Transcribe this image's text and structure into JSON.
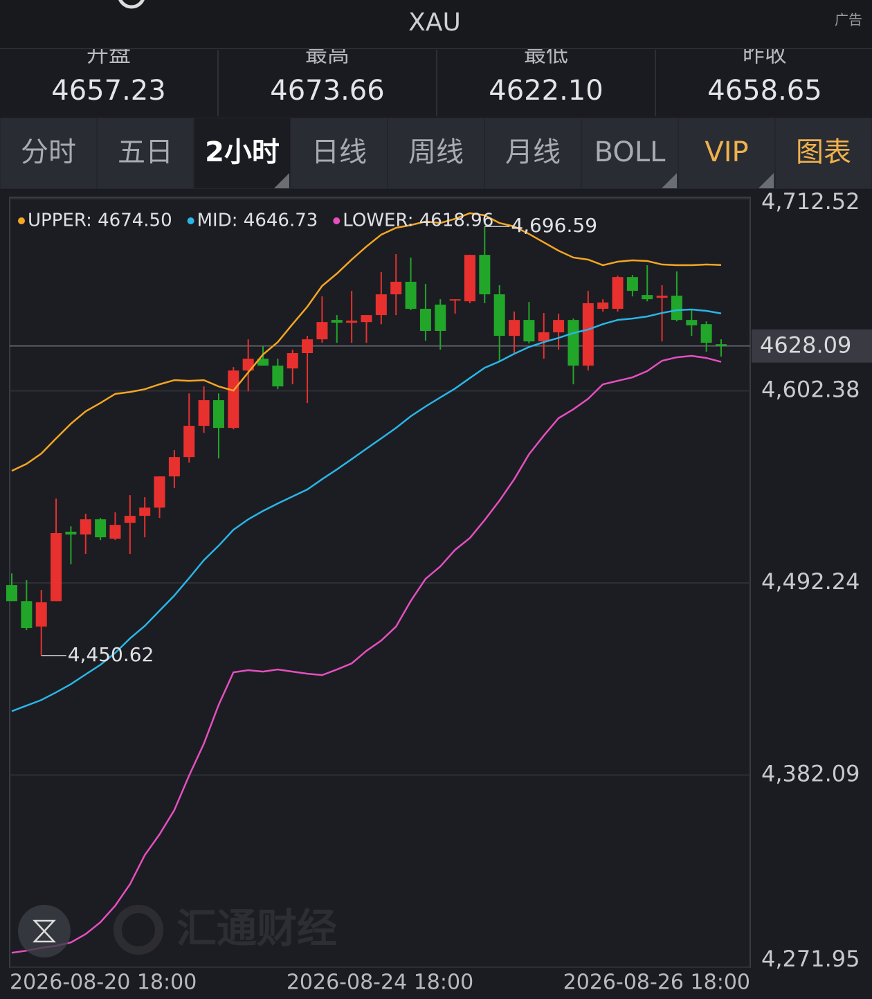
{
  "header": {
    "title": "XAU",
    "ad": "广告"
  },
  "stats": [
    {
      "label": "开盘",
      "value": "4657.23"
    },
    {
      "label": "最高",
      "value": "4673.66"
    },
    {
      "label": "最低",
      "value": "4622.10"
    },
    {
      "label": "昨收",
      "value": "4658.65"
    }
  ],
  "tabs": [
    "分时",
    "五日",
    "2小时",
    "日线",
    "周线",
    "月线",
    "BOLL",
    "VIP",
    "图表"
  ],
  "active_tab": 2,
  "watermark": "汇通财经",
  "chart_data": {
    "type": "candlestick",
    "up_color": "#e8312f",
    "down_color": "#22a62a",
    "open": [
      4491.0,
      4481.8,
      4467.2,
      4481.8,
      4521.6,
      4520.0,
      4528.7,
      4517.6,
      4526.7,
      4530.7,
      4535.4,
      4553.3,
      4564.4,
      4582.3,
      4597.0,
      4581.1,
      4614.0,
      4620.8,
      4616.8,
      4615.2,
      4624.0,
      4631.9,
      4643.0,
      4641.4,
      4641.8,
      4645.8,
      4657.7,
      4664.9,
      4649.4,
      4651.8,
      4654.1,
      4653.7,
      4680.3,
      4657.7,
      4633.9,
      4643.0,
      4630.7,
      4635.9,
      4643.0,
      4616.8,
      4649.4,
      4649.4,
      4667.6,
      4657.3,
      4655.7,
      4656.9,
      4643.0,
      4640.6,
      4629.1
    ],
    "high": [
      4497.7,
      4493.8,
      4488.2,
      4540.6,
      4524.7,
      4531.9,
      4529.5,
      4532.7,
      4542.6,
      4541.4,
      4553.3,
      4568.4,
      4600.9,
      4604.9,
      4600.9,
      4616.0,
      4631.9,
      4627.9,
      4620.8,
      4626.0,
      4633.9,
      4656.5,
      4645.8,
      4659.7,
      4645.8,
      4670.4,
      4680.7,
      4678.8,
      4663.7,
      4654.9,
      4654.9,
      4680.3,
      4696.59,
      4662.9,
      4647.8,
      4653.3,
      4647.0,
      4646.6,
      4643.8,
      4659.7,
      4654.9,
      4668.4,
      4668.8,
      4674.4,
      4662.9,
      4670.8,
      4649.0,
      4642.2,
      4631.9
    ],
    "low": [
      4481.8,
      4465.2,
      4450.62,
      4481.8,
      4502.9,
      4508.9,
      4516.8,
      4516.8,
      4508.9,
      4518.4,
      4529.5,
      4546.6,
      4561.2,
      4578.3,
      4563.6,
      4580.3,
      4602.1,
      4616.8,
      4603.3,
      4606.1,
      4595.4,
      4629.9,
      4629.9,
      4629.9,
      4629.9,
      4640.6,
      4645.8,
      4648.6,
      4631.1,
      4626.0,
      4646.6,
      4652.6,
      4652.6,
      4619.2,
      4624.0,
      4629.5,
      4620.8,
      4626.0,
      4606.1,
      4614.0,
      4647.8,
      4647.8,
      4656.5,
      4653.7,
      4630.7,
      4642.2,
      4633.9,
      4624.8,
      4622.0
    ],
    "close": [
      4481.8,
      4466.4,
      4481.1,
      4520.8,
      4520.0,
      4528.7,
      4518.4,
      4525.5,
      4530.7,
      4535.4,
      4553.3,
      4564.4,
      4582.3,
      4597.0,
      4581.1,
      4614.0,
      4620.8,
      4616.8,
      4604.9,
      4624.0,
      4631.9,
      4641.8,
      4641.4,
      4642.6,
      4645.8,
      4657.7,
      4664.9,
      4649.4,
      4636.7,
      4636.7,
      4654.9,
      4680.3,
      4657.7,
      4633.9,
      4643.0,
      4630.7,
      4635.9,
      4643.0,
      4616.8,
      4652.6,
      4653.0,
      4667.6,
      4659.7,
      4654.9,
      4656.9,
      4643.0,
      4639.9,
      4629.9,
      4628.09
    ],
    "series": [
      {
        "name": "UPPER: 4674.50",
        "color": "#f5a623",
        "values": [
          4556.5,
          4560.5,
          4566.4,
          4575.1,
          4583.5,
          4590.6,
          4595.4,
          4600.6,
          4601.7,
          4603.3,
          4606.1,
          4608.5,
          4608.1,
          4608.5,
          4604.9,
          4602.5,
          4612.9,
          4623.2,
          4630.3,
          4640.6,
          4650.6,
          4662.5,
          4669.6,
          4677.6,
          4685.1,
          4691.9,
          4695.8,
          4697.4,
          4699.4,
          4698.6,
          4701.0,
          4704.2,
          4703.0,
          4698.6,
          4696.6,
          4692.3,
          4687.5,
          4682.7,
          4678.8,
          4677.6,
          4674.4,
          4676.4,
          4677.2,
          4676.8,
          4674.8,
          4674.4,
          4674.4,
          4674.8,
          4674.5
        ]
      },
      {
        "name": "MID: 4646.73",
        "color": "#29b6e8",
        "values": [
          4418.7,
          4421.9,
          4425.1,
          4429.5,
          4434.2,
          4439.8,
          4445.3,
          4452.1,
          4460.4,
          4467.6,
          4476.3,
          4485.0,
          4495.0,
          4505.3,
          4513.6,
          4522.7,
          4528.7,
          4533.5,
          4537.8,
          4541.8,
          4545.8,
          4551.7,
          4557.3,
          4563.2,
          4569.2,
          4575.1,
          4581.1,
          4587.8,
          4593.4,
          4598.6,
          4603.7,
          4609.7,
          4615.6,
          4619.2,
          4623.6,
          4627.5,
          4630.3,
          4632.7,
          4635.5,
          4637.5,
          4640.6,
          4643.0,
          4643.8,
          4645.0,
          4647.0,
          4648.6,
          4649.0,
          4648.2,
          4646.73
        ]
      },
      {
        "name": "LOWER: 4618.96",
        "color": "#e64fc0",
        "values": [
          4280.2,
          4281.4,
          4283.0,
          4284.2,
          4286.1,
          4290.9,
          4297.7,
          4307.2,
          4319.5,
          4336.2,
          4348.1,
          4362.0,
          4381.8,
          4400.1,
          4422.3,
          4441.0,
          4442.2,
          4441.4,
          4442.6,
          4441.4,
          4440.2,
          4439.4,
          4442.6,
          4446.1,
          4453.3,
          4459.2,
          4467.2,
          4481.9,
          4494.6,
          4501.7,
          4511.2,
          4518.0,
          4528.3,
          4539.4,
          4551.7,
          4566.0,
          4576.7,
          4586.7,
          4591.8,
          4597.8,
          4606.1,
          4608.1,
          4610.1,
          4613.7,
          4619.6,
          4621.6,
          4622.4,
          4621.2,
          4618.96
        ]
      }
    ],
    "ylim": [
      4271.95,
      4712.52
    ],
    "yticks": [
      {
        "value": 4712.52,
        "label": "4,712.52"
      },
      {
        "value": 4602.38,
        "label": "4,602.38"
      },
      {
        "value": 4492.24,
        "label": "4,492.24"
      },
      {
        "value": 4382.09,
        "label": "4,382.09"
      },
      {
        "value": 4271.95,
        "label": "4,271.95"
      }
    ],
    "last_price": 4628.09,
    "max_label": "4,696.59",
    "min_label": "4,450.62",
    "x_labels": [
      "2026-08-20 18:00",
      "2026-08-24 18:00",
      "2026-08-26 18:00"
    ]
  }
}
